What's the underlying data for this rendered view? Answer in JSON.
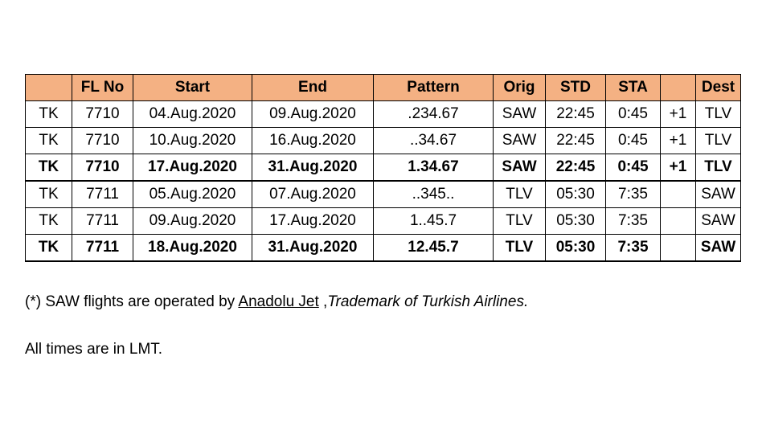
{
  "table": {
    "headers": [
      "",
      "FL No",
      "Start",
      "End",
      "Pattern",
      "Orig",
      "STD",
      "STA",
      "",
      "Dest"
    ],
    "rows": [
      {
        "airline": "TK",
        "fl_no": "7710",
        "start": "04.Aug.2020",
        "end": "09.Aug.2020",
        "pattern": ".234.67",
        "orig": "SAW",
        "std": "22:45",
        "sta": "0:45",
        "day": "+1",
        "dest": "TLV",
        "bold": false
      },
      {
        "airline": "TK",
        "fl_no": "7710",
        "start": "10.Aug.2020",
        "end": "16.Aug.2020",
        "pattern": "..34.67",
        "orig": "SAW",
        "std": "22:45",
        "sta": "0:45",
        "day": "+1",
        "dest": "TLV",
        "bold": false
      },
      {
        "airline": "TK",
        "fl_no": "7710",
        "start": "17.Aug.2020",
        "end": "31.Aug.2020",
        "pattern": "1.34.67",
        "orig": "SAW",
        "std": "22:45",
        "sta": "0:45",
        "day": "+1",
        "dest": "TLV",
        "bold": true
      },
      {
        "airline": "TK",
        "fl_no": "7711",
        "start": "05.Aug.2020",
        "end": "07.Aug.2020",
        "pattern": "..345..",
        "orig": "TLV",
        "std": "05:30",
        "sta": "7:35",
        "day": "",
        "dest": "SAW",
        "bold": false
      },
      {
        "airline": "TK",
        "fl_no": "7711",
        "start": "09.Aug.2020",
        "end": "17.Aug.2020",
        "pattern": "1..45.7",
        "orig": "TLV",
        "std": "05:30",
        "sta": "7:35",
        "day": "",
        "dest": "SAW",
        "bold": false
      },
      {
        "airline": "TK",
        "fl_no": "7711",
        "start": "18.Aug.2020",
        "end": "31.Aug.2020",
        "pattern": "12.45.7",
        "orig": "TLV",
        "std": "05:30",
        "sta": "7:35",
        "day": "",
        "dest": "SAW",
        "bold": true
      }
    ]
  },
  "notes": {
    "operated_prefix": "(*) SAW flights are operated by ",
    "operator_link": "Anadolu Jet",
    "operated_suffix": " ,",
    "trademark": "Trademark of Turkish Airlines.",
    "times": "All times are in LMT."
  }
}
